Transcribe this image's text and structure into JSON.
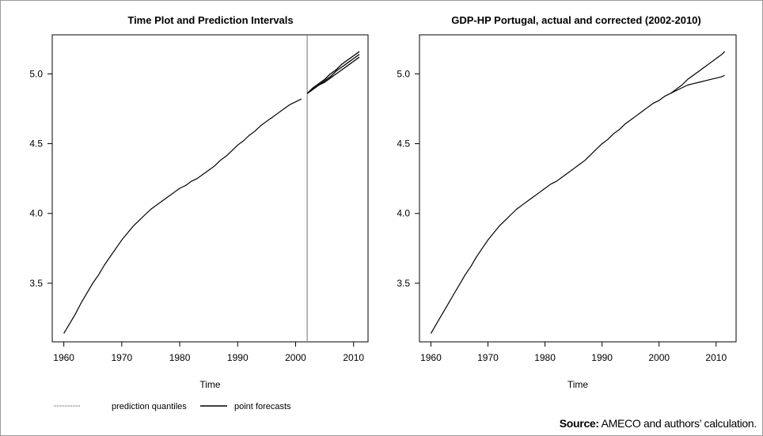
{
  "chart_data": [
    {
      "type": "line",
      "title": "Time Plot and Prediction Intervals",
      "xlabel": "Time",
      "ylabel": "",
      "xlim": [
        1958,
        2012.5
      ],
      "ylim": [
        3.08,
        5.28
      ],
      "x_ticks": [
        1960,
        1970,
        1980,
        1990,
        2000,
        2010
      ],
      "y_ticks": [
        3.5,
        4.0,
        4.5,
        5.0
      ],
      "y_tick_labels": [
        "3.5",
        "4.0",
        "4.5",
        "5.0"
      ],
      "vertical_line_x": 2002,
      "series": [
        {
          "kind": "actual",
          "x": [
            1960,
            1961,
            1962,
            1963,
            1964,
            1965,
            1966,
            1967,
            1968,
            1969,
            1970,
            1971,
            1972,
            1973,
            1974,
            1975,
            1976,
            1977,
            1978,
            1979,
            1980,
            1981,
            1982,
            1983,
            1984,
            1985,
            1986,
            1987,
            1988,
            1989,
            1990,
            1991,
            1992,
            1993,
            1994,
            1995,
            1996,
            1997,
            1998,
            1999,
            2000,
            2001
          ],
          "values": [
            3.14,
            3.21,
            3.28,
            3.36,
            3.43,
            3.5,
            3.56,
            3.63,
            3.69,
            3.75,
            3.81,
            3.86,
            3.91,
            3.95,
            3.99,
            4.03,
            4.06,
            4.09,
            4.12,
            4.15,
            4.18,
            4.2,
            4.23,
            4.25,
            4.28,
            4.31,
            4.34,
            4.38,
            4.41,
            4.45,
            4.49,
            4.52,
            4.56,
            4.59,
            4.63,
            4.66,
            4.69,
            4.72,
            4.75,
            4.78,
            4.8,
            4.82
          ]
        },
        {
          "kind": "forecast-upper",
          "x": [
            2002,
            2003,
            2004,
            2005,
            2006,
            2007,
            2008,
            2009,
            2010,
            2011
          ],
          "values": [
            4.86,
            4.9,
            4.93,
            4.96,
            5.0,
            5.03,
            5.07,
            5.1,
            5.13,
            5.16
          ]
        },
        {
          "kind": "forecast-point",
          "x": [
            2002,
            2003,
            2004,
            2005,
            2006,
            2007,
            2008,
            2009,
            2010,
            2011
          ],
          "values": [
            4.86,
            4.89,
            4.92,
            4.95,
            4.98,
            5.02,
            5.05,
            5.08,
            5.11,
            5.14
          ]
        },
        {
          "kind": "forecast-lower",
          "x": [
            2002,
            2003,
            2004,
            2005,
            2006,
            2007,
            2008,
            2009,
            2010,
            2011
          ],
          "values": [
            4.86,
            4.89,
            4.92,
            4.94,
            4.97,
            5.0,
            5.03,
            5.06,
            5.09,
            5.12
          ]
        }
      ],
      "legend": [
        {
          "label": "prediction quantiles",
          "style": "dotted"
        },
        {
          "label": "point forecasts",
          "style": "solid"
        }
      ],
      "legend_placement": "bottom-left"
    },
    {
      "type": "line",
      "title": "GDP-HP Portugal, actual and corrected (2002-2010)",
      "xlabel": "Time",
      "ylabel": "",
      "xlim": [
        1958,
        2013.5
      ],
      "ylim": [
        3.08,
        5.28
      ],
      "x_ticks": [
        1960,
        1970,
        1980,
        1990,
        2000,
        2010
      ],
      "y_ticks": [
        3.5,
        4.0,
        4.5,
        5.0
      ],
      "y_tick_labels": [
        "3.5",
        "4.0",
        "4.5",
        "5.0"
      ],
      "series": [
        {
          "kind": "base",
          "x": [
            1960,
            1961,
            1962,
            1963,
            1964,
            1965,
            1966,
            1967,
            1968,
            1969,
            1970,
            1971,
            1972,
            1973,
            1974,
            1975,
            1976,
            1977,
            1978,
            1979,
            1980,
            1981,
            1982,
            1983,
            1984,
            1985,
            1986,
            1987,
            1988,
            1989,
            1990,
            1991,
            1992,
            1993,
            1994,
            1995,
            1996,
            1997,
            1998,
            1999,
            2000,
            2001,
            2002
          ],
          "values": [
            3.14,
            3.21,
            3.28,
            3.35,
            3.42,
            3.49,
            3.56,
            3.62,
            3.69,
            3.75,
            3.81,
            3.86,
            3.91,
            3.95,
            3.99,
            4.03,
            4.06,
            4.09,
            4.12,
            4.15,
            4.18,
            4.21,
            4.23,
            4.26,
            4.29,
            4.32,
            4.35,
            4.38,
            4.42,
            4.46,
            4.5,
            4.53,
            4.57,
            4.6,
            4.64,
            4.67,
            4.7,
            4.73,
            4.76,
            4.79,
            4.81,
            4.84,
            4.86
          ]
        },
        {
          "kind": "upper-path",
          "x": [
            2002,
            2003,
            2004,
            2005,
            2006,
            2007,
            2008,
            2009,
            2010,
            2011,
            2011.5
          ],
          "values": [
            4.86,
            4.89,
            4.92,
            4.96,
            4.99,
            5.02,
            5.05,
            5.08,
            5.11,
            5.14,
            5.16
          ]
        },
        {
          "kind": "lower-path",
          "x": [
            2002,
            2003,
            2004,
            2005,
            2006,
            2007,
            2008,
            2009,
            2010,
            2011,
            2011.5
          ],
          "values": [
            4.86,
            4.88,
            4.9,
            4.92,
            4.93,
            4.94,
            4.95,
            4.96,
            4.97,
            4.98,
            4.99
          ]
        }
      ]
    }
  ],
  "source": {
    "label": "Source:",
    "text": " AMECO and authors’ calculation."
  }
}
